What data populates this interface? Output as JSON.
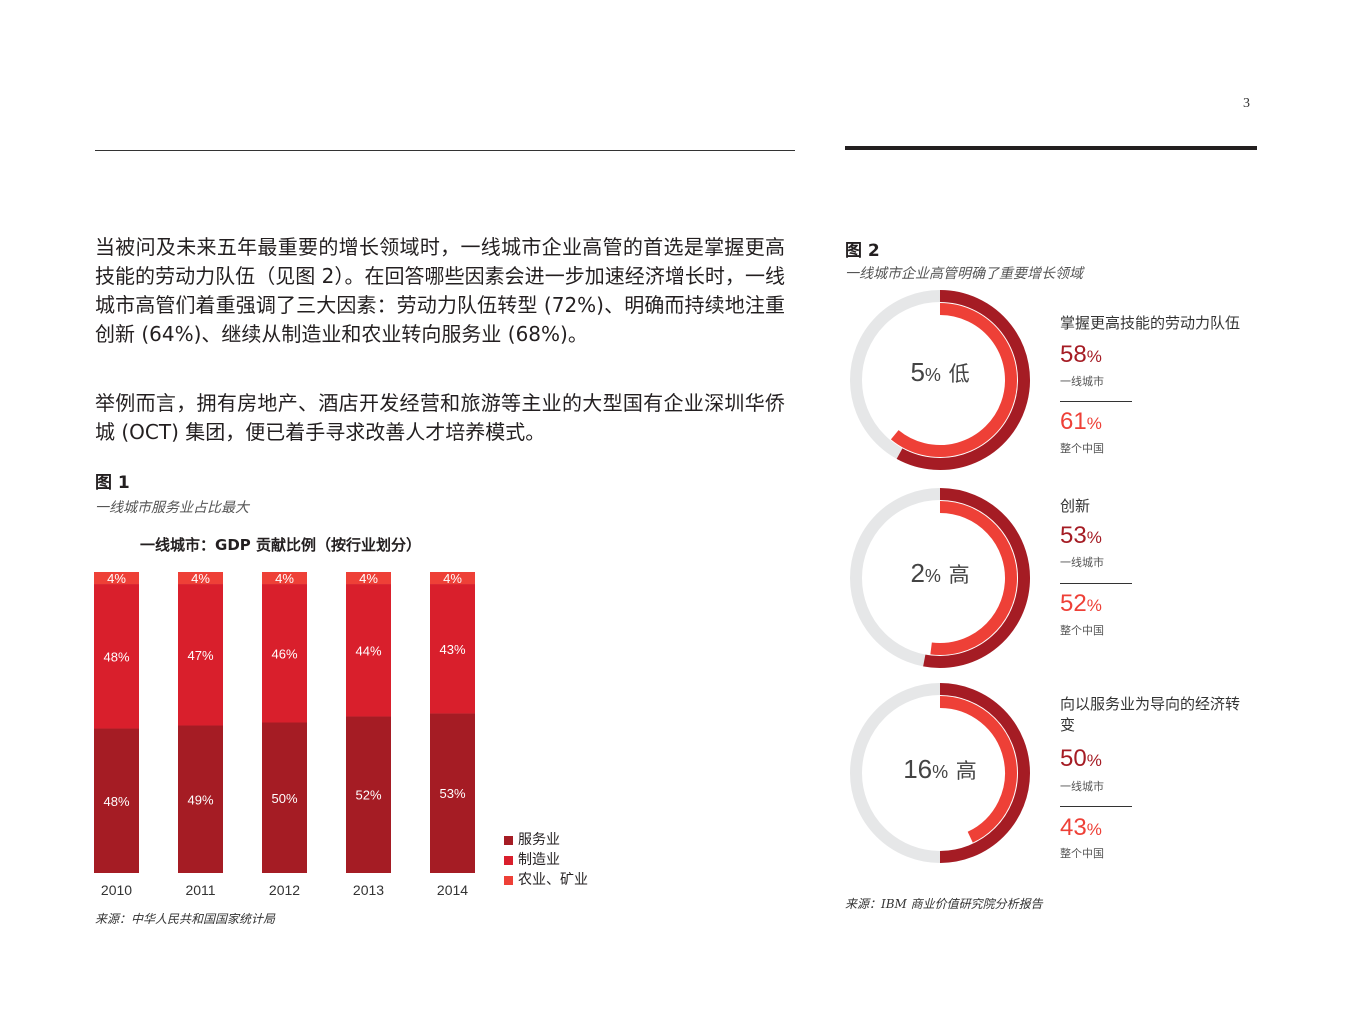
{
  "page_number": "3",
  "body": {
    "paragraph1": "当被问及未来五年最重要的增长领域时，一线城市企业高管的首选是掌握更高技能的劳动力队伍（见图 2）。在回答哪些因素会进一步加速经济增长时，一线城市高管们着重强调了三大因素：劳动力队伍转型 (72%)、明确而持续地注重创新 (64%)、继续从制造业和农业转向服务业 (68%)。",
    "paragraph2": "举例而言，拥有房地产、酒店开发经营和旅游等主业的大型国有企业深圳华侨城 (OCT) 集团，便已着手寻求改善人才培养模式。"
  },
  "figure1": {
    "label": "图 1",
    "subtitle": "一线城市服务业占比最大",
    "source": "来源：中华人民共和国国家统计局"
  },
  "chart_data": {
    "type": "bar",
    "stacked": true,
    "title": "一线城市：GDP 贡献比例（按行业划分）",
    "categories": [
      "2010",
      "2011",
      "2012",
      "2013",
      "2014"
    ],
    "series": [
      {
        "name": "服务业",
        "values": [
          48,
          49,
          50,
          52,
          53
        ],
        "labels": [
          "48%",
          "49%",
          "50%",
          "52%",
          "53%"
        ],
        "color": "#a51c24"
      },
      {
        "name": "制造业",
        "values": [
          48,
          47,
          46,
          44,
          43
        ],
        "labels": [
          "48%",
          "47%",
          "46%",
          "44%",
          "43%"
        ],
        "color": "#d91f2c"
      },
      {
        "name": "农业、矿业",
        "values": [
          4,
          4,
          4,
          4,
          4
        ],
        "labels": [
          "4%",
          "4%",
          "4%",
          "4%",
          "4%"
        ],
        "color": "#ee4037"
      }
    ],
    "ylim": [
      0,
      100
    ],
    "grid": false,
    "legend": "right-bottom"
  },
  "figure2": {
    "label": "图 2",
    "subtitle": "一线城市企业高管明确了重要增长领域",
    "source": "来源：IBM 商业价值研究院分析报告",
    "colors": {
      "tier1": "#a51c24",
      "china": "#ee4037",
      "track": "#e6e7e8"
    },
    "items": [
      {
        "heading": "掌握更高技能的劳动力队伍",
        "diff_num": "5",
        "diff_sign": "%",
        "diff_level": "低",
        "tier1_num": "58",
        "tier1_pct": 58,
        "tier1_label": "一线城市",
        "china_num": "61",
        "china_pct": 61,
        "china_label": "整个中国",
        "pct_sign": "%"
      },
      {
        "heading": "创新",
        "diff_num": "2",
        "diff_sign": "%",
        "diff_level": "高",
        "tier1_num": "53",
        "tier1_pct": 53,
        "tier1_label": "一线城市",
        "china_num": "52",
        "china_pct": 52,
        "china_label": "整个中国",
        "pct_sign": "%"
      },
      {
        "heading": "向以服务业为导向的经济转变",
        "diff_num": "16",
        "diff_sign": "%",
        "diff_level": "高",
        "tier1_num": "50",
        "tier1_pct": 50,
        "tier1_label": "一线城市",
        "china_num": "43",
        "china_pct": 43,
        "china_label": "整个中国",
        "pct_sign": "%"
      }
    ]
  }
}
